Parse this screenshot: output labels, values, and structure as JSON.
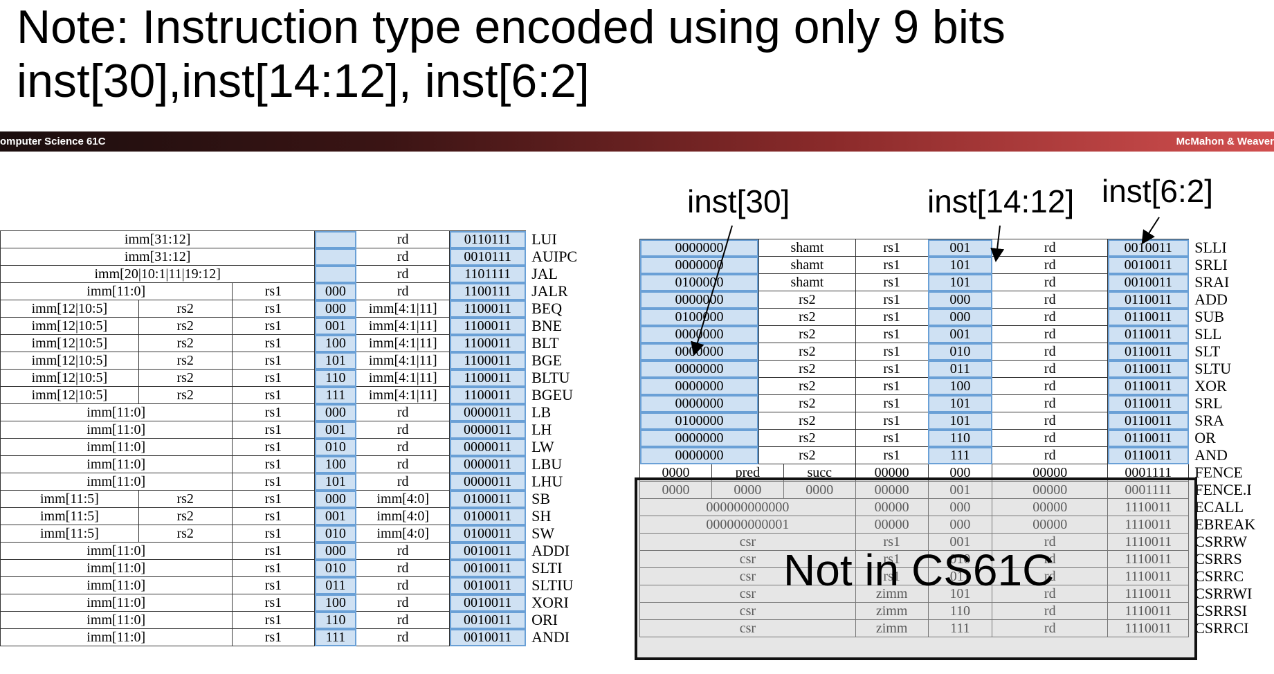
{
  "title": {
    "line1": "Note: Instruction type encoded using only 9 bits",
    "line2": "inst[30],inst[14:12], inst[6:2]"
  },
  "banner": {
    "left": "omputer Science 61C",
    "right": "McMahon & Weaver"
  },
  "labels": {
    "inst30": "inst[30]",
    "inst1412": "inst[14:12]",
    "inst62": "inst[6:2]"
  },
  "overlay": "Not in CS61C",
  "left_table": [
    {
      "cells": [
        {
          "t": "imm[31:12]",
          "span": 3
        },
        {
          "t": "",
          "hl": true
        },
        {
          "t": "rd"
        },
        {
          "t": "0110111",
          "hl": true
        }
      ],
      "name": "LUI"
    },
    {
      "cells": [
        {
          "t": "imm[31:12]",
          "span": 3
        },
        {
          "t": "",
          "hl": true
        },
        {
          "t": "rd"
        },
        {
          "t": "0010111",
          "hl": true
        }
      ],
      "name": "AUIPC"
    },
    {
      "cells": [
        {
          "t": "imm[20|10:1|11|19:12]",
          "span": 3
        },
        {
          "t": "",
          "hl": true
        },
        {
          "t": "rd"
        },
        {
          "t": "1101111",
          "hl": true
        }
      ],
      "name": "JAL"
    },
    {
      "cells": [
        {
          "t": "imm[11:0]",
          "span": 2
        },
        {
          "t": "rs1"
        },
        {
          "t": "000",
          "hl": true
        },
        {
          "t": "rd"
        },
        {
          "t": "1100111",
          "hl": true
        }
      ],
      "name": "JALR"
    },
    {
      "cells": [
        {
          "t": "imm[12|10:5]"
        },
        {
          "t": "rs2"
        },
        {
          "t": "rs1"
        },
        {
          "t": "000",
          "hl": true
        },
        {
          "t": "imm[4:1|11]"
        },
        {
          "t": "1100011",
          "hl": true
        }
      ],
      "name": "BEQ"
    },
    {
      "cells": [
        {
          "t": "imm[12|10:5]"
        },
        {
          "t": "rs2"
        },
        {
          "t": "rs1"
        },
        {
          "t": "001",
          "hl": true
        },
        {
          "t": "imm[4:1|11]"
        },
        {
          "t": "1100011",
          "hl": true
        }
      ],
      "name": "BNE"
    },
    {
      "cells": [
        {
          "t": "imm[12|10:5]"
        },
        {
          "t": "rs2"
        },
        {
          "t": "rs1"
        },
        {
          "t": "100",
          "hl": true
        },
        {
          "t": "imm[4:1|11]"
        },
        {
          "t": "1100011",
          "hl": true
        }
      ],
      "name": "BLT"
    },
    {
      "cells": [
        {
          "t": "imm[12|10:5]"
        },
        {
          "t": "rs2"
        },
        {
          "t": "rs1"
        },
        {
          "t": "101",
          "hl": true
        },
        {
          "t": "imm[4:1|11]"
        },
        {
          "t": "1100011",
          "hl": true
        }
      ],
      "name": "BGE"
    },
    {
      "cells": [
        {
          "t": "imm[12|10:5]"
        },
        {
          "t": "rs2"
        },
        {
          "t": "rs1"
        },
        {
          "t": "110",
          "hl": true
        },
        {
          "t": "imm[4:1|11]"
        },
        {
          "t": "1100011",
          "hl": true
        }
      ],
      "name": "BLTU"
    },
    {
      "cells": [
        {
          "t": "imm[12|10:5]"
        },
        {
          "t": "rs2"
        },
        {
          "t": "rs1"
        },
        {
          "t": "111",
          "hl": true
        },
        {
          "t": "imm[4:1|11]"
        },
        {
          "t": "1100011",
          "hl": true
        }
      ],
      "name": "BGEU"
    },
    {
      "cells": [
        {
          "t": "imm[11:0]",
          "span": 2
        },
        {
          "t": "rs1"
        },
        {
          "t": "000",
          "hl": true
        },
        {
          "t": "rd"
        },
        {
          "t": "0000011",
          "hl": true
        }
      ],
      "name": "LB"
    },
    {
      "cells": [
        {
          "t": "imm[11:0]",
          "span": 2
        },
        {
          "t": "rs1"
        },
        {
          "t": "001",
          "hl": true
        },
        {
          "t": "rd"
        },
        {
          "t": "0000011",
          "hl": true
        }
      ],
      "name": "LH"
    },
    {
      "cells": [
        {
          "t": "imm[11:0]",
          "span": 2
        },
        {
          "t": "rs1"
        },
        {
          "t": "010",
          "hl": true
        },
        {
          "t": "rd"
        },
        {
          "t": "0000011",
          "hl": true
        }
      ],
      "name": "LW"
    },
    {
      "cells": [
        {
          "t": "imm[11:0]",
          "span": 2
        },
        {
          "t": "rs1"
        },
        {
          "t": "100",
          "hl": true
        },
        {
          "t": "rd"
        },
        {
          "t": "0000011",
          "hl": true
        }
      ],
      "name": "LBU"
    },
    {
      "cells": [
        {
          "t": "imm[11:0]",
          "span": 2
        },
        {
          "t": "rs1"
        },
        {
          "t": "101",
          "hl": true
        },
        {
          "t": "rd"
        },
        {
          "t": "0000011",
          "hl": true
        }
      ],
      "name": "LHU"
    },
    {
      "cells": [
        {
          "t": "imm[11:5]"
        },
        {
          "t": "rs2"
        },
        {
          "t": "rs1"
        },
        {
          "t": "000",
          "hl": true
        },
        {
          "t": "imm[4:0]"
        },
        {
          "t": "0100011",
          "hl": true
        }
      ],
      "name": "SB"
    },
    {
      "cells": [
        {
          "t": "imm[11:5]"
        },
        {
          "t": "rs2"
        },
        {
          "t": "rs1"
        },
        {
          "t": "001",
          "hl": true
        },
        {
          "t": "imm[4:0]"
        },
        {
          "t": "0100011",
          "hl": true
        }
      ],
      "name": "SH"
    },
    {
      "cells": [
        {
          "t": "imm[11:5]"
        },
        {
          "t": "rs2"
        },
        {
          "t": "rs1"
        },
        {
          "t": "010",
          "hl": true
        },
        {
          "t": "imm[4:0]"
        },
        {
          "t": "0100011",
          "hl": true
        }
      ],
      "name": "SW"
    },
    {
      "cells": [
        {
          "t": "imm[11:0]",
          "span": 2
        },
        {
          "t": "rs1"
        },
        {
          "t": "000",
          "hl": true
        },
        {
          "t": "rd"
        },
        {
          "t": "0010011",
          "hl": true
        }
      ],
      "name": "ADDI"
    },
    {
      "cells": [
        {
          "t": "imm[11:0]",
          "span": 2
        },
        {
          "t": "rs1"
        },
        {
          "t": "010",
          "hl": true
        },
        {
          "t": "rd"
        },
        {
          "t": "0010011",
          "hl": true
        }
      ],
      "name": "SLTI"
    },
    {
      "cells": [
        {
          "t": "imm[11:0]",
          "span": 2
        },
        {
          "t": "rs1"
        },
        {
          "t": "011",
          "hl": true
        },
        {
          "t": "rd"
        },
        {
          "t": "0010011",
          "hl": true
        }
      ],
      "name": "SLTIU"
    },
    {
      "cells": [
        {
          "t": "imm[11:0]",
          "span": 2
        },
        {
          "t": "rs1"
        },
        {
          "t": "100",
          "hl": true
        },
        {
          "t": "rd"
        },
        {
          "t": "0010011",
          "hl": true
        }
      ],
      "name": "XORI"
    },
    {
      "cells": [
        {
          "t": "imm[11:0]",
          "span": 2
        },
        {
          "t": "rs1"
        },
        {
          "t": "110",
          "hl": true
        },
        {
          "t": "rd"
        },
        {
          "t": "0010011",
          "hl": true
        }
      ],
      "name": "ORI"
    },
    {
      "cells": [
        {
          "t": "imm[11:0]",
          "span": 2
        },
        {
          "t": "rs1"
        },
        {
          "t": "111",
          "hl": true
        },
        {
          "t": "rd"
        },
        {
          "t": "0010011",
          "hl": true
        }
      ],
      "name": "ANDI"
    }
  ],
  "right_table": [
    {
      "cells": [
        {
          "t": "0000000",
          "hl": true
        },
        {
          "t": "shamt"
        },
        {
          "t": "rs1"
        },
        {
          "t": "001",
          "hl": true
        },
        {
          "t": "rd"
        },
        {
          "t": "0010011",
          "hl": true
        }
      ],
      "name": "SLLI"
    },
    {
      "cells": [
        {
          "t": "0000000",
          "hl": true
        },
        {
          "t": "shamt"
        },
        {
          "t": "rs1"
        },
        {
          "t": "101",
          "hl": true
        },
        {
          "t": "rd"
        },
        {
          "t": "0010011",
          "hl": true
        }
      ],
      "name": "SRLI"
    },
    {
      "cells": [
        {
          "t": "0100000",
          "hl": true
        },
        {
          "t": "shamt"
        },
        {
          "t": "rs1"
        },
        {
          "t": "101",
          "hl": true
        },
        {
          "t": "rd"
        },
        {
          "t": "0010011",
          "hl": true
        }
      ],
      "name": "SRAI"
    },
    {
      "cells": [
        {
          "t": "0000000",
          "hl": true
        },
        {
          "t": "rs2"
        },
        {
          "t": "rs1"
        },
        {
          "t": "000",
          "hl": true
        },
        {
          "t": "rd"
        },
        {
          "t": "0110011",
          "hl": true
        }
      ],
      "name": "ADD"
    },
    {
      "cells": [
        {
          "t": "0100000",
          "hl": true
        },
        {
          "t": "rs2"
        },
        {
          "t": "rs1"
        },
        {
          "t": "000",
          "hl": true
        },
        {
          "t": "rd"
        },
        {
          "t": "0110011",
          "hl": true
        }
      ],
      "name": "SUB"
    },
    {
      "cells": [
        {
          "t": "0000000",
          "hl": true
        },
        {
          "t": "rs2"
        },
        {
          "t": "rs1"
        },
        {
          "t": "001",
          "hl": true
        },
        {
          "t": "rd"
        },
        {
          "t": "0110011",
          "hl": true
        }
      ],
      "name": "SLL"
    },
    {
      "cells": [
        {
          "t": "0000000",
          "hl": true
        },
        {
          "t": "rs2"
        },
        {
          "t": "rs1"
        },
        {
          "t": "010",
          "hl": true
        },
        {
          "t": "rd"
        },
        {
          "t": "0110011",
          "hl": true
        }
      ],
      "name": "SLT"
    },
    {
      "cells": [
        {
          "t": "0000000",
          "hl": true
        },
        {
          "t": "rs2"
        },
        {
          "t": "rs1"
        },
        {
          "t": "011",
          "hl": true
        },
        {
          "t": "rd"
        },
        {
          "t": "0110011",
          "hl": true
        }
      ],
      "name": "SLTU"
    },
    {
      "cells": [
        {
          "t": "0000000",
          "hl": true
        },
        {
          "t": "rs2"
        },
        {
          "t": "rs1"
        },
        {
          "t": "100",
          "hl": true
        },
        {
          "t": "rd"
        },
        {
          "t": "0110011",
          "hl": true
        }
      ],
      "name": "XOR"
    },
    {
      "cells": [
        {
          "t": "0000000",
          "hl": true
        },
        {
          "t": "rs2"
        },
        {
          "t": "rs1"
        },
        {
          "t": "101",
          "hl": true
        },
        {
          "t": "rd"
        },
        {
          "t": "0110011",
          "hl": true
        }
      ],
      "name": "SRL"
    },
    {
      "cells": [
        {
          "t": "0100000",
          "hl": true
        },
        {
          "t": "rs2"
        },
        {
          "t": "rs1"
        },
        {
          "t": "101",
          "hl": true
        },
        {
          "t": "rd"
        },
        {
          "t": "0110011",
          "hl": true
        }
      ],
      "name": "SRA"
    },
    {
      "cells": [
        {
          "t": "0000000",
          "hl": true
        },
        {
          "t": "rs2"
        },
        {
          "t": "rs1"
        },
        {
          "t": "110",
          "hl": true
        },
        {
          "t": "rd"
        },
        {
          "t": "0110011",
          "hl": true
        }
      ],
      "name": "OR"
    },
    {
      "cells": [
        {
          "t": "0000000",
          "hl": true
        },
        {
          "t": "rs2"
        },
        {
          "t": "rs1"
        },
        {
          "t": "111",
          "hl": true
        },
        {
          "t": "rd"
        },
        {
          "t": "0110011",
          "hl": true
        }
      ],
      "name": "AND"
    },
    {
      "cells": [
        {
          "t": "0000"
        },
        {
          "t": "pred"
        },
        {
          "t": "succ"
        },
        {
          "t": "00000"
        },
        {
          "t": "000"
        },
        {
          "t": "00000"
        },
        {
          "t": "0001111"
        }
      ],
      "name": "FENCE",
      "split": true
    },
    {
      "cells": [
        {
          "t": "0000"
        },
        {
          "t": "0000"
        },
        {
          "t": "0000"
        },
        {
          "t": "00000"
        },
        {
          "t": "001"
        },
        {
          "t": "00000"
        },
        {
          "t": "0001111"
        }
      ],
      "name": "FENCE.I",
      "split": true
    },
    {
      "cells": [
        {
          "t": "000000000000",
          "span": 2
        },
        {
          "t": "00000"
        },
        {
          "t": "000"
        },
        {
          "t": "00000"
        },
        {
          "t": "1110011"
        }
      ],
      "name": "ECALL"
    },
    {
      "cells": [
        {
          "t": "000000000001",
          "span": 2
        },
        {
          "t": "00000"
        },
        {
          "t": "000"
        },
        {
          "t": "00000"
        },
        {
          "t": "1110011"
        }
      ],
      "name": "EBREAK"
    },
    {
      "cells": [
        {
          "t": "csr",
          "span": 2
        },
        {
          "t": "rs1"
        },
        {
          "t": "001"
        },
        {
          "t": "rd"
        },
        {
          "t": "1110011"
        }
      ],
      "name": "CSRRW"
    },
    {
      "cells": [
        {
          "t": "csr",
          "span": 2
        },
        {
          "t": "rs1"
        },
        {
          "t": "010"
        },
        {
          "t": "rd"
        },
        {
          "t": "1110011"
        }
      ],
      "name": "CSRRS"
    },
    {
      "cells": [
        {
          "t": "csr",
          "span": 2
        },
        {
          "t": "rs1"
        },
        {
          "t": "011"
        },
        {
          "t": "rd"
        },
        {
          "t": "1110011"
        }
      ],
      "name": "CSRRC"
    },
    {
      "cells": [
        {
          "t": "csr",
          "span": 2
        },
        {
          "t": "zimm"
        },
        {
          "t": "101"
        },
        {
          "t": "rd"
        },
        {
          "t": "1110011"
        }
      ],
      "name": "CSRRWI"
    },
    {
      "cells": [
        {
          "t": "csr",
          "span": 2
        },
        {
          "t": "zimm"
        },
        {
          "t": "110"
        },
        {
          "t": "rd"
        },
        {
          "t": "1110011"
        }
      ],
      "name": "CSRRSI"
    },
    {
      "cells": [
        {
          "t": "csr",
          "span": 2
        },
        {
          "t": "zimm"
        },
        {
          "t": "111"
        },
        {
          "t": "rd"
        },
        {
          "t": "1110011"
        }
      ],
      "name": "CSRRCI"
    }
  ]
}
